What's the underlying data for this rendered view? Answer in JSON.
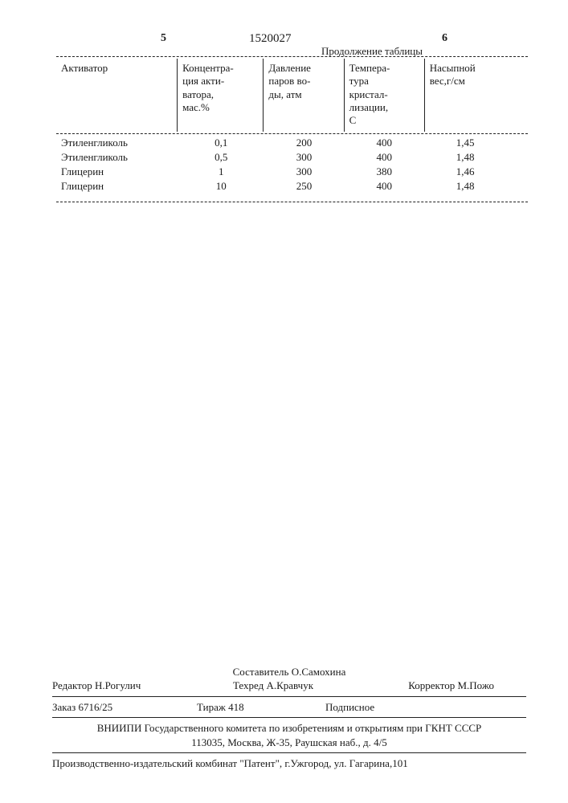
{
  "header": {
    "left_num": "5",
    "doc_number": "1520027",
    "right_num": "6",
    "continuation": "Продолжение таблицы"
  },
  "table": {
    "columns": [
      "Активатор",
      "Концентра-\nция акти-\nватора,\nмас.%",
      "Давление\nпаров во-\nды, атм",
      "Темпера-\nтура\nкристал-\nлизации,\nС",
      "Насыпной\nвес,г/см"
    ],
    "rows": [
      [
        "Этиленгликоль",
        "0,1",
        "200",
        "400",
        "1,45"
      ],
      [
        "Этиленгликоль",
        "0,5",
        "300",
        "400",
        "1,48"
      ],
      [
        "Глицерин",
        "1",
        "300",
        "380",
        "1,46"
      ],
      [
        "Глицерин",
        "10",
        "250",
        "400",
        "1,48"
      ]
    ]
  },
  "footer": {
    "compiler": "Составитель О.Самохина",
    "editor": "Редактор Н.Рогулич",
    "techred": "Техред А.Кравчук",
    "corrector": "Корректор М.Пожо",
    "order": "Заказ 6716/25",
    "tirazh": "Тираж 418",
    "subscr": "Подписное",
    "org": "ВНИИПИ Государственного комитета по изобретениям и открытиям при ГКНТ СССР",
    "addr": "113035, Москва, Ж-35, Раушская наб., д. 4/5",
    "printer": "Производственно-издательский комбинат \"Патент\", г.Ужгород, ул. Гагарина,101"
  }
}
